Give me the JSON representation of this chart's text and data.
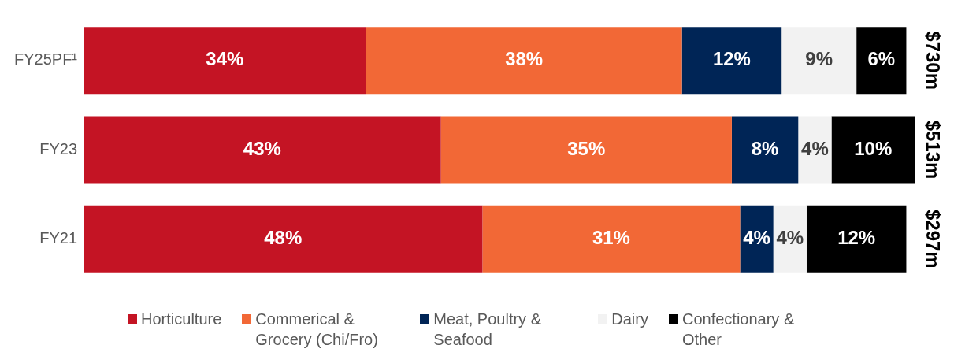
{
  "chart_data": {
    "type": "bar",
    "orientation": "horizontal",
    "stacked": true,
    "categories": [
      "FY25PF¹",
      "FY23",
      "FY21"
    ],
    "series": [
      {
        "name": "Horticulture",
        "color": "#c41424",
        "values": [
          34,
          43,
          48
        ],
        "value_labels": [
          "34%",
          "43%",
          "48%"
        ]
      },
      {
        "name": "Commerical & Grocery (Chi/Fro)",
        "color": "#f26836",
        "values": [
          38,
          35,
          31
        ],
        "value_labels": [
          "38%",
          "35%",
          "31%"
        ]
      },
      {
        "name": "Meat, Poultry & Seafood",
        "color": "#002556",
        "values": [
          12,
          8,
          4
        ],
        "value_labels": [
          "12%",
          "8%",
          "4%"
        ]
      },
      {
        "name": "Dairy",
        "color": "#f2f2f2",
        "values": [
          9,
          4,
          4
        ],
        "value_labels": [
          "9%",
          "4%",
          "4%"
        ]
      },
      {
        "name": "Confectionary & Other",
        "color": "#000000",
        "values": [
          6,
          10,
          12
        ],
        "value_labels": [
          "6%",
          "10%",
          "12%"
        ]
      }
    ],
    "annotations": [
      "$730m",
      "$513m",
      "$297m"
    ],
    "legend": "bottom",
    "tick_labels": "y"
  }
}
